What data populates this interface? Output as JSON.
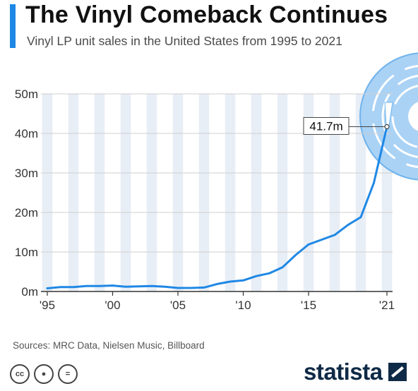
{
  "header": {
    "title": "The Vinyl Comeback Continues",
    "subtitle": "Vinyl LP unit sales in the United States from 1995 to 2021"
  },
  "footer": {
    "source": "Sources: MRC Data, Nielsen Music, Billboard",
    "brand": "statista",
    "license_icons": [
      "cc-icon",
      "attribution-icon",
      "no-derivatives-icon"
    ]
  },
  "colors": {
    "accent": "#1f88e5",
    "line": "#1f88e5",
    "stripe": "#e8eef6",
    "vinyl": "#a9d2f5",
    "brand": "#0f2a46"
  },
  "chart_data": {
    "type": "line",
    "title": "The Vinyl Comeback Continues",
    "subtitle": "Vinyl LP unit sales in the United States from 1995 to 2021",
    "xlabel": "",
    "ylabel": "",
    "x": [
      1995,
      1996,
      1997,
      1998,
      1999,
      2000,
      2001,
      2002,
      2003,
      2004,
      2005,
      2006,
      2007,
      2008,
      2009,
      2010,
      2011,
      2012,
      2013,
      2014,
      2015,
      2016,
      2017,
      2018,
      2019,
      2020,
      2021
    ],
    "values": [
      0.8,
      1.1,
      1.1,
      1.4,
      1.4,
      1.5,
      1.2,
      1.3,
      1.4,
      1.2,
      0.9,
      0.9,
      1.0,
      1.9,
      2.5,
      2.8,
      3.9,
      4.6,
      6.1,
      9.2,
      11.9,
      13.1,
      14.3,
      16.8,
      18.8,
      27.5,
      41.7
    ],
    "ylim": [
      0,
      50
    ],
    "yticks": [
      0,
      10,
      20,
      30,
      40,
      50
    ],
    "ytick_labels": [
      "0m",
      "10m",
      "20m",
      "30m",
      "40m",
      "50m"
    ],
    "xticks": [
      1995,
      2000,
      2005,
      2010,
      2015,
      2021
    ],
    "xtick_labels": [
      "'95",
      "'00",
      "'05",
      "'10",
      "'15",
      "'21"
    ],
    "annotation": {
      "x": 2021,
      "y": 41.7,
      "label": "41.7m"
    },
    "grid": true,
    "legend": "none"
  }
}
